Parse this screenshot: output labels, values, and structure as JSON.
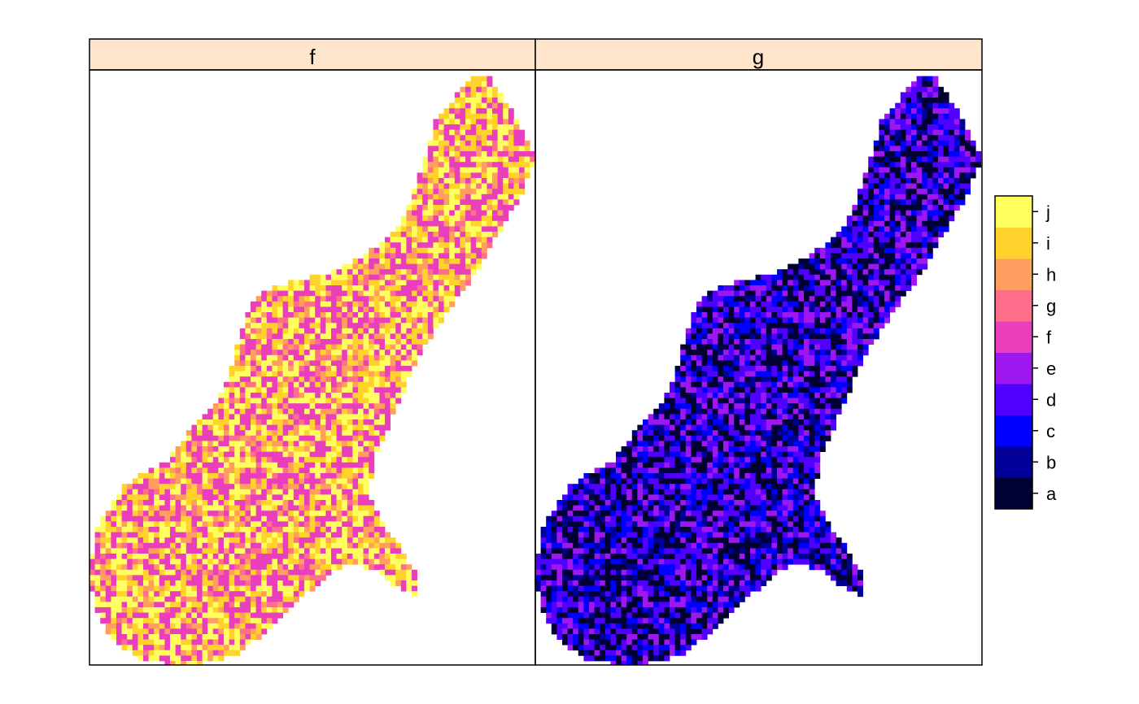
{
  "chart_data": {
    "type": "heatmap",
    "title": "",
    "xlabel": "",
    "ylabel": "",
    "grid": false,
    "legend_position": "right",
    "panels": [
      {
        "name": "f",
        "dominant_levels": [
          "f",
          "i",
          "j",
          "h",
          "g"
        ]
      },
      {
        "name": "g",
        "dominant_levels": [
          "a",
          "b",
          "c",
          "d",
          "e"
        ]
      }
    ],
    "legend": {
      "levels": [
        "a",
        "b",
        "c",
        "d",
        "e",
        "f",
        "g",
        "h",
        "i",
        "j"
      ],
      "colors": [
        "#000033",
        "#000099",
        "#0000ff",
        "#5000ff",
        "#9e17ef",
        "#e93fbc",
        "#ff6e8a",
        "#ff9e5e",
        "#ffd32c",
        "#ffff60"
      ]
    }
  }
}
